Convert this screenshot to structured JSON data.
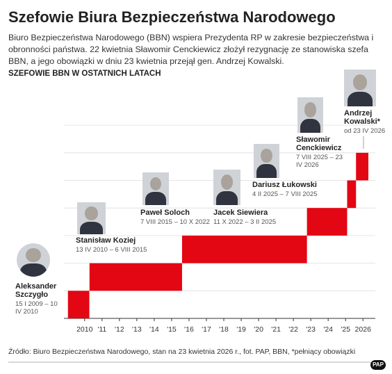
{
  "chart_data": {
    "type": "timeline",
    "title": "Szefowie Biura Bezpieczeństwa Narodowego",
    "subtitle": "Biuro Bezpieczeństwa Narodowego (BBN) wspiera Prezydenta RP w zakresie bezpieczeństwa i obronności państwa. 22 kwietnia Sławomir Cenckiewicz złożył rezygnację ze stanowiska szefa BBN, a jego obowiązki w dniu 23 kwietnia przejął gen. Andrzej Kowalski.",
    "heading": "SZEFOWIE BBN W OSTATNICH LATACH",
    "color": "#e30613",
    "xlim": [
      2008.81,
      2026.71
    ],
    "xticks": [
      2010,
      {
        "value": 2011,
        "label": "'11"
      },
      {
        "value": 2012,
        "label": "'12"
      },
      {
        "value": 2013,
        "label": "'13"
      },
      {
        "value": 2014,
        "label": "'14"
      },
      {
        "value": 2015,
        "label": "'15"
      },
      {
        "value": 2016,
        "label": "'16"
      },
      {
        "value": 2017,
        "label": "'17"
      },
      {
        "value": 2018,
        "label": "'18"
      },
      {
        "value": 2019,
        "label": "'19"
      },
      {
        "value": 2020,
        "label": "'20"
      },
      {
        "value": 2021,
        "label": "'21"
      },
      {
        "value": 2022,
        "label": "'22"
      },
      {
        "value": 2023,
        "label": "'23"
      },
      {
        "value": 2024,
        "label": "'24"
      },
      {
        "value": 2025,
        "label": "'25"
      },
      2026
    ],
    "items": [
      {
        "name": "Aleksander Szczygło",
        "period": "15 I 2009 – 10 IV 2010",
        "start": 2009.04,
        "end": 2010.27
      },
      {
        "name": "Stanisław Koziej",
        "period": "13 IV 2010 – 6 VIII 2015",
        "start": 2010.28,
        "end": 2015.6
      },
      {
        "name": "Paweł Soloch",
        "period": "7 VIII 2015 – 10 X 2022",
        "start": 2015.6,
        "end": 2022.78
      },
      {
        "name": "Jacek Siewiera",
        "period": "11 X 2022 – 3 II 2025",
        "start": 2022.78,
        "end": 2025.09
      },
      {
        "name": "Dariusz Łukowski",
        "period": "4 II 2025 – 7 VIII 2025",
        "start": 2025.09,
        "end": 2025.6
      },
      {
        "name": "Sławomir Cenckiewicz",
        "period": "7 VIII 2025 – 23 IV 2026",
        "start": 2025.6,
        "end": 2026.31
      },
      {
        "name": "Andrzej Kowalski*",
        "period": "od 23 IV 2026"
      }
    ],
    "source": "Źródło: Biuro Bezpieczeństwa Narodowego, stan na 23 kwietnia 2026 r., fot. PAP, BBN, *pełniący obowiązki",
    "logo": "PAP"
  }
}
